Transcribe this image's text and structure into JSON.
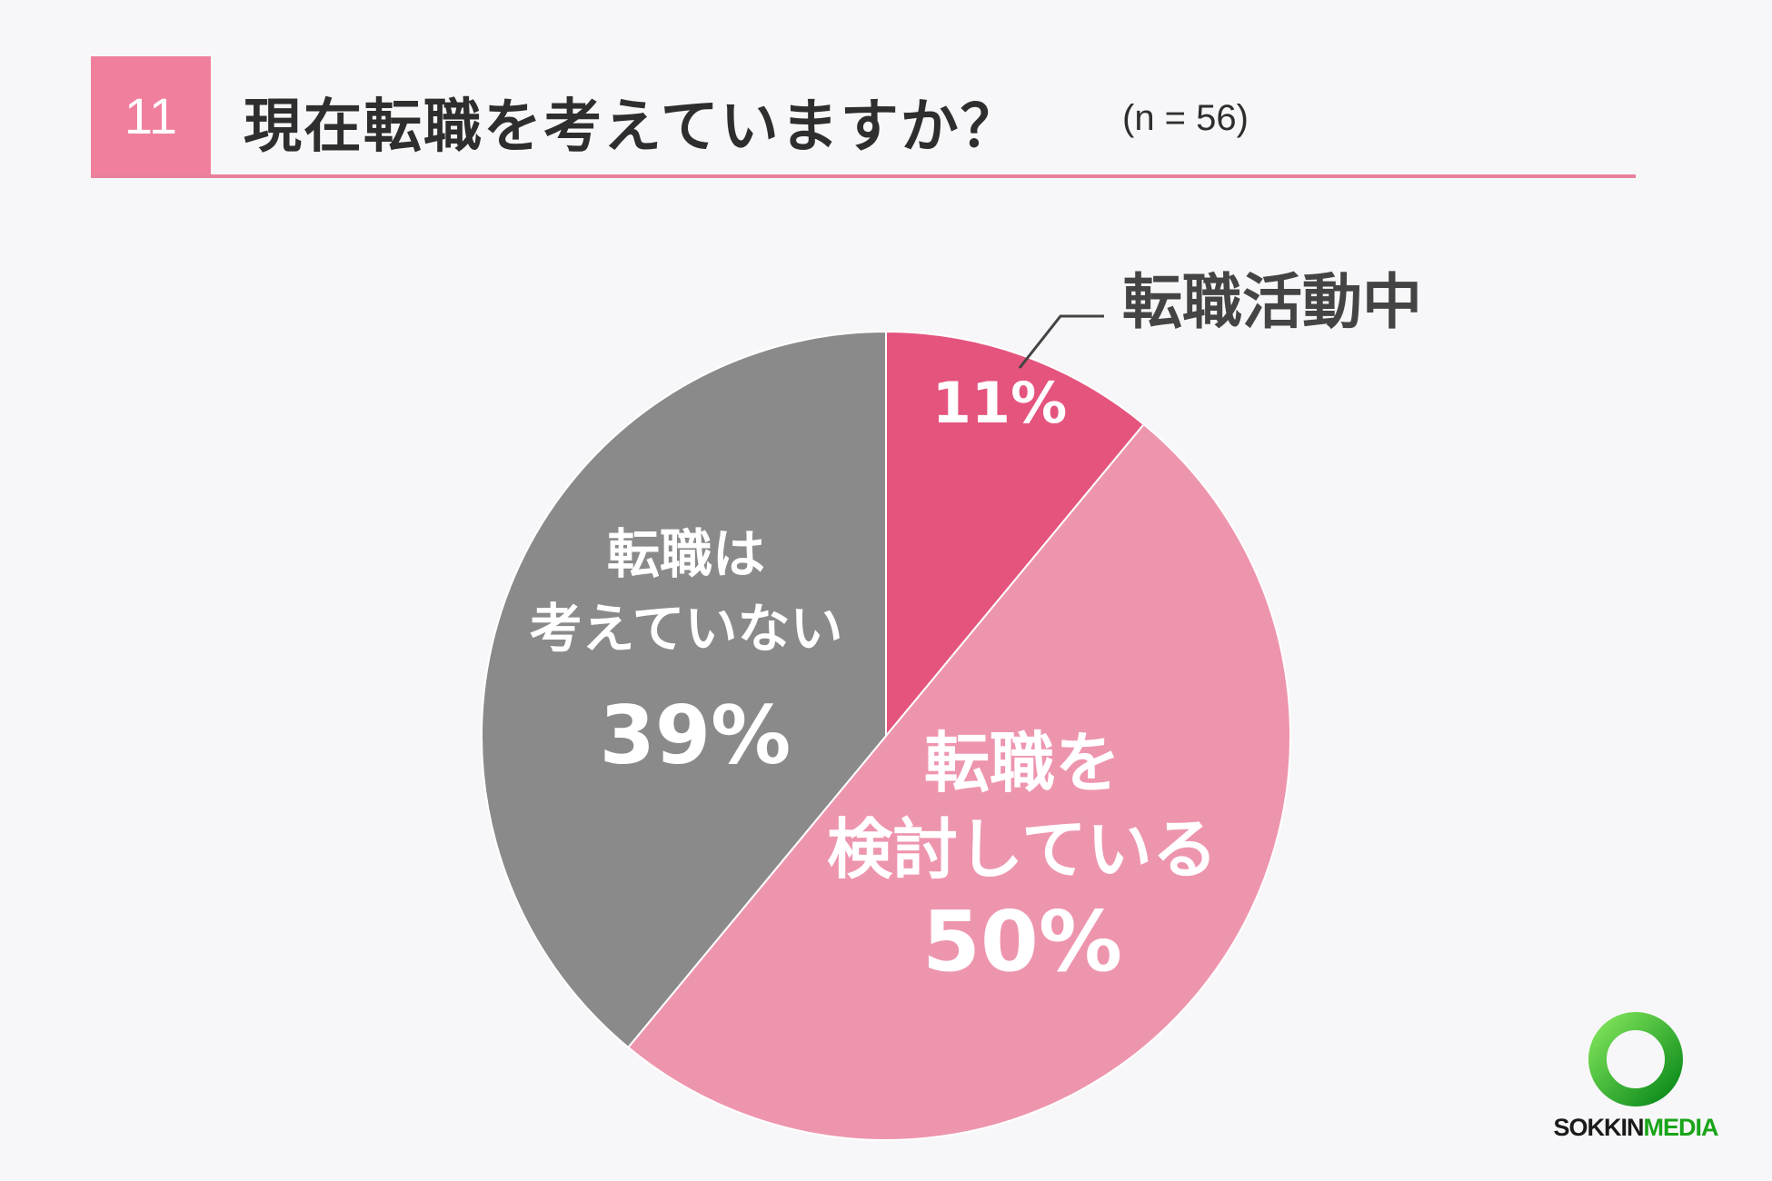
{
  "header": {
    "number": "11",
    "title": "現在転職を考えていますか？",
    "sample": "(n = 56)"
  },
  "chart_data": {
    "type": "pie",
    "slices": [
      {
        "label": "転職活動中",
        "value": 11,
        "value_label": "11%",
        "color": "#e4547d"
      },
      {
        "label": "転職を検討している",
        "value": 50,
        "value_label": "50%",
        "color": "#ee95ae"
      },
      {
        "label": "転職は考えていない",
        "value": 39,
        "value_label": "39%",
        "color": "#8a8a8a"
      }
    ],
    "start": "12 o'clock",
    "direction": "clockwise"
  },
  "logo": {
    "part1": "SOKKIN",
    "part2": "MEDIA"
  }
}
